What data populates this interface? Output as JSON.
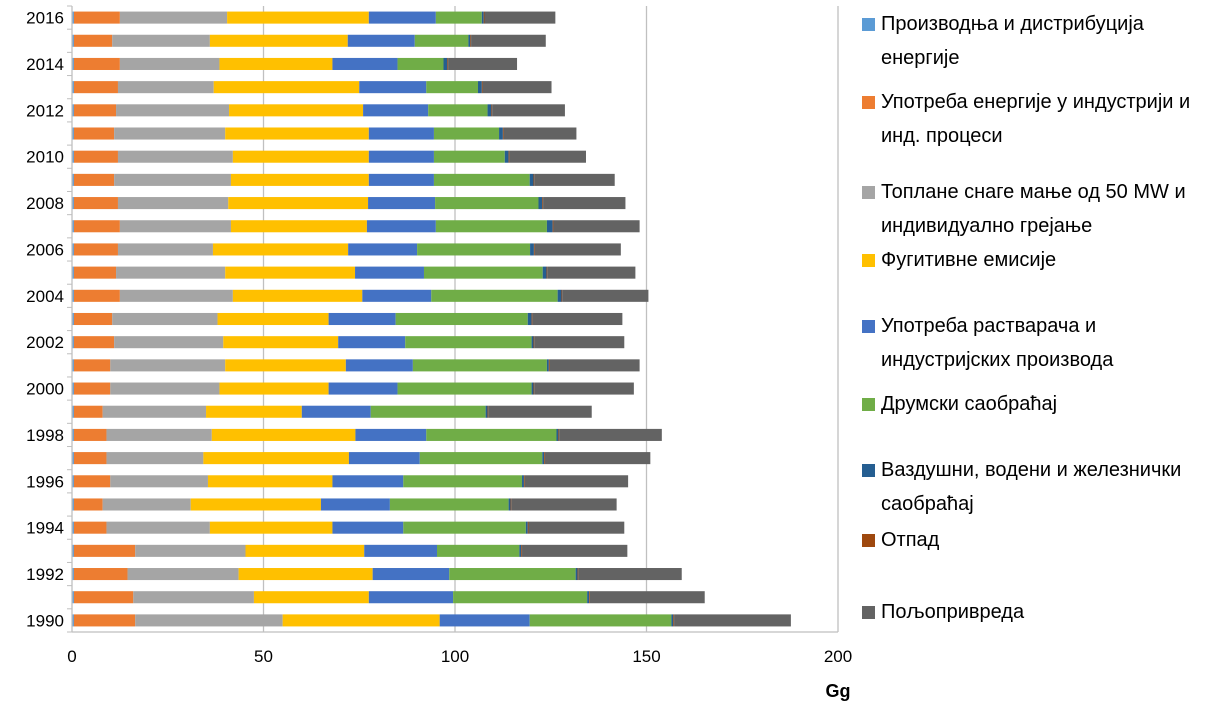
{
  "chart_data": {
    "type": "bar",
    "orientation": "horizontal",
    "stacked": true,
    "xlabel": "Gg",
    "xlim": [
      0,
      200
    ],
    "xticks": [
      0,
      50,
      100,
      150,
      200
    ],
    "grid": true,
    "legend_position": "right",
    "categories": [
      "1990",
      "1991",
      "1992",
      "1993",
      "1994",
      "1995",
      "1996",
      "1997",
      "1998",
      "1999",
      "2000",
      "2001",
      "2002",
      "2003",
      "2004",
      "2005",
      "2006",
      "2007",
      "2008",
      "2009",
      "2010",
      "2011",
      "2012",
      "2013",
      "2014",
      "2015",
      "2016"
    ],
    "category_tick_labels": [
      "1990",
      "",
      "1992",
      "",
      "1994",
      "",
      "1996",
      "",
      "1998",
      "",
      "2000",
      "",
      "2002",
      "",
      "2004",
      "",
      "2006",
      "",
      "2008",
      "",
      "2010",
      "",
      "2012",
      "",
      "2014",
      "",
      "2016"
    ],
    "series": [
      {
        "name": "Производња и дистрибуција енергије",
        "color": "#5B9BD5",
        "values": [
          0.5,
          0.5,
          0.5,
          0.5,
          0.5,
          0.5,
          0.5,
          0.5,
          0.5,
          0.5,
          0.5,
          0.5,
          0.5,
          0.5,
          0.5,
          0.5,
          0.5,
          0.5,
          0.5,
          0.5,
          0.5,
          0.5,
          0.5,
          0.5,
          0.5,
          0.5,
          0.5
        ]
      },
      {
        "name": "Употреба енергије у индустрији и инд. процеси",
        "color": "#ED7D31",
        "values": [
          16,
          15.5,
          14,
          16,
          8.5,
          7.5,
          9.5,
          8.5,
          8.5,
          7.5,
          9.5,
          9.5,
          10.5,
          10,
          12,
          11,
          11.5,
          12,
          11.5,
          10.5,
          11.5,
          10.5,
          11,
          11.5,
          12,
          10,
          12
        ]
      },
      {
        "name": "Топлане снаге мање од 50 MW и индивидуално грејање",
        "color": "#A5A5A5",
        "values": [
          38.5,
          31.5,
          29,
          28.8,
          27,
          23,
          25.5,
          25.3,
          27.5,
          27,
          28.5,
          30,
          28.5,
          27.5,
          29.5,
          28.5,
          24.8,
          29,
          28.8,
          30.5,
          30,
          29,
          29.5,
          25,
          26,
          25.5,
          28
        ]
      },
      {
        "name": "Фугитивне емисије",
        "color": "#FFC000",
        "values": [
          41,
          30,
          35,
          31,
          32,
          34,
          32.5,
          38,
          37.5,
          25,
          28.5,
          31.5,
          30,
          29,
          33.8,
          33.9,
          35.3,
          35.5,
          36.5,
          36,
          35.5,
          37.5,
          35,
          38,
          29.5,
          36,
          37
        ]
      },
      {
        "name": "Употреба растварача и индустријских производа",
        "color": "#4472C4",
        "values": [
          23.5,
          22,
          20,
          19,
          18.5,
          18,
          18.5,
          18.5,
          18.5,
          18,
          18,
          17.5,
          17.5,
          17.5,
          18,
          18,
          18,
          18,
          17.5,
          17,
          17,
          17,
          17,
          17.5,
          17,
          17.5,
          17.5
        ]
      },
      {
        "name": "Друмски саобраћај",
        "color": "#70AD47",
        "values": [
          37,
          35,
          33,
          21.5,
          32,
          31,
          31,
          32,
          34,
          30,
          35,
          35,
          33,
          34.5,
          33,
          31,
          29.5,
          29,
          27,
          25,
          18.5,
          17,
          15.5,
          13.5,
          12,
          14,
          12
        ]
      },
      {
        "name": "Ваздушни, водени и железнички саобраћај",
        "color": "#255E91",
        "values": [
          0.5,
          0.5,
          0.5,
          0.5,
          0.5,
          0.5,
          0.5,
          0.5,
          0.5,
          0.5,
          0.5,
          0.5,
          0.5,
          1,
          1,
          1,
          1,
          1.5,
          1,
          1,
          1,
          1,
          1,
          1,
          1,
          0.5,
          0.5
        ]
      },
      {
        "name": "Отпад",
        "color": "#9E480E",
        "values": [
          0.2,
          0.2,
          0.2,
          0.2,
          0.2,
          0.2,
          0.2,
          0.2,
          0.2,
          0.2,
          0.2,
          0.2,
          0.2,
          0.2,
          0.2,
          0.2,
          0.2,
          0.2,
          0.2,
          0.2,
          0.2,
          0.2,
          0.2,
          0.2,
          0.2,
          0.2,
          0.2
        ]
      },
      {
        "name": "Пољопривреда",
        "color": "#636363",
        "values": [
          30.5,
          30,
          27,
          27.5,
          25,
          27.5,
          27,
          27.5,
          26.8,
          27,
          26,
          23.5,
          23.5,
          23.5,
          22.5,
          23,
          22.5,
          22.5,
          21.5,
          21,
          20,
          19,
          19,
          18,
          18,
          19.5,
          18.5
        ]
      }
    ]
  }
}
